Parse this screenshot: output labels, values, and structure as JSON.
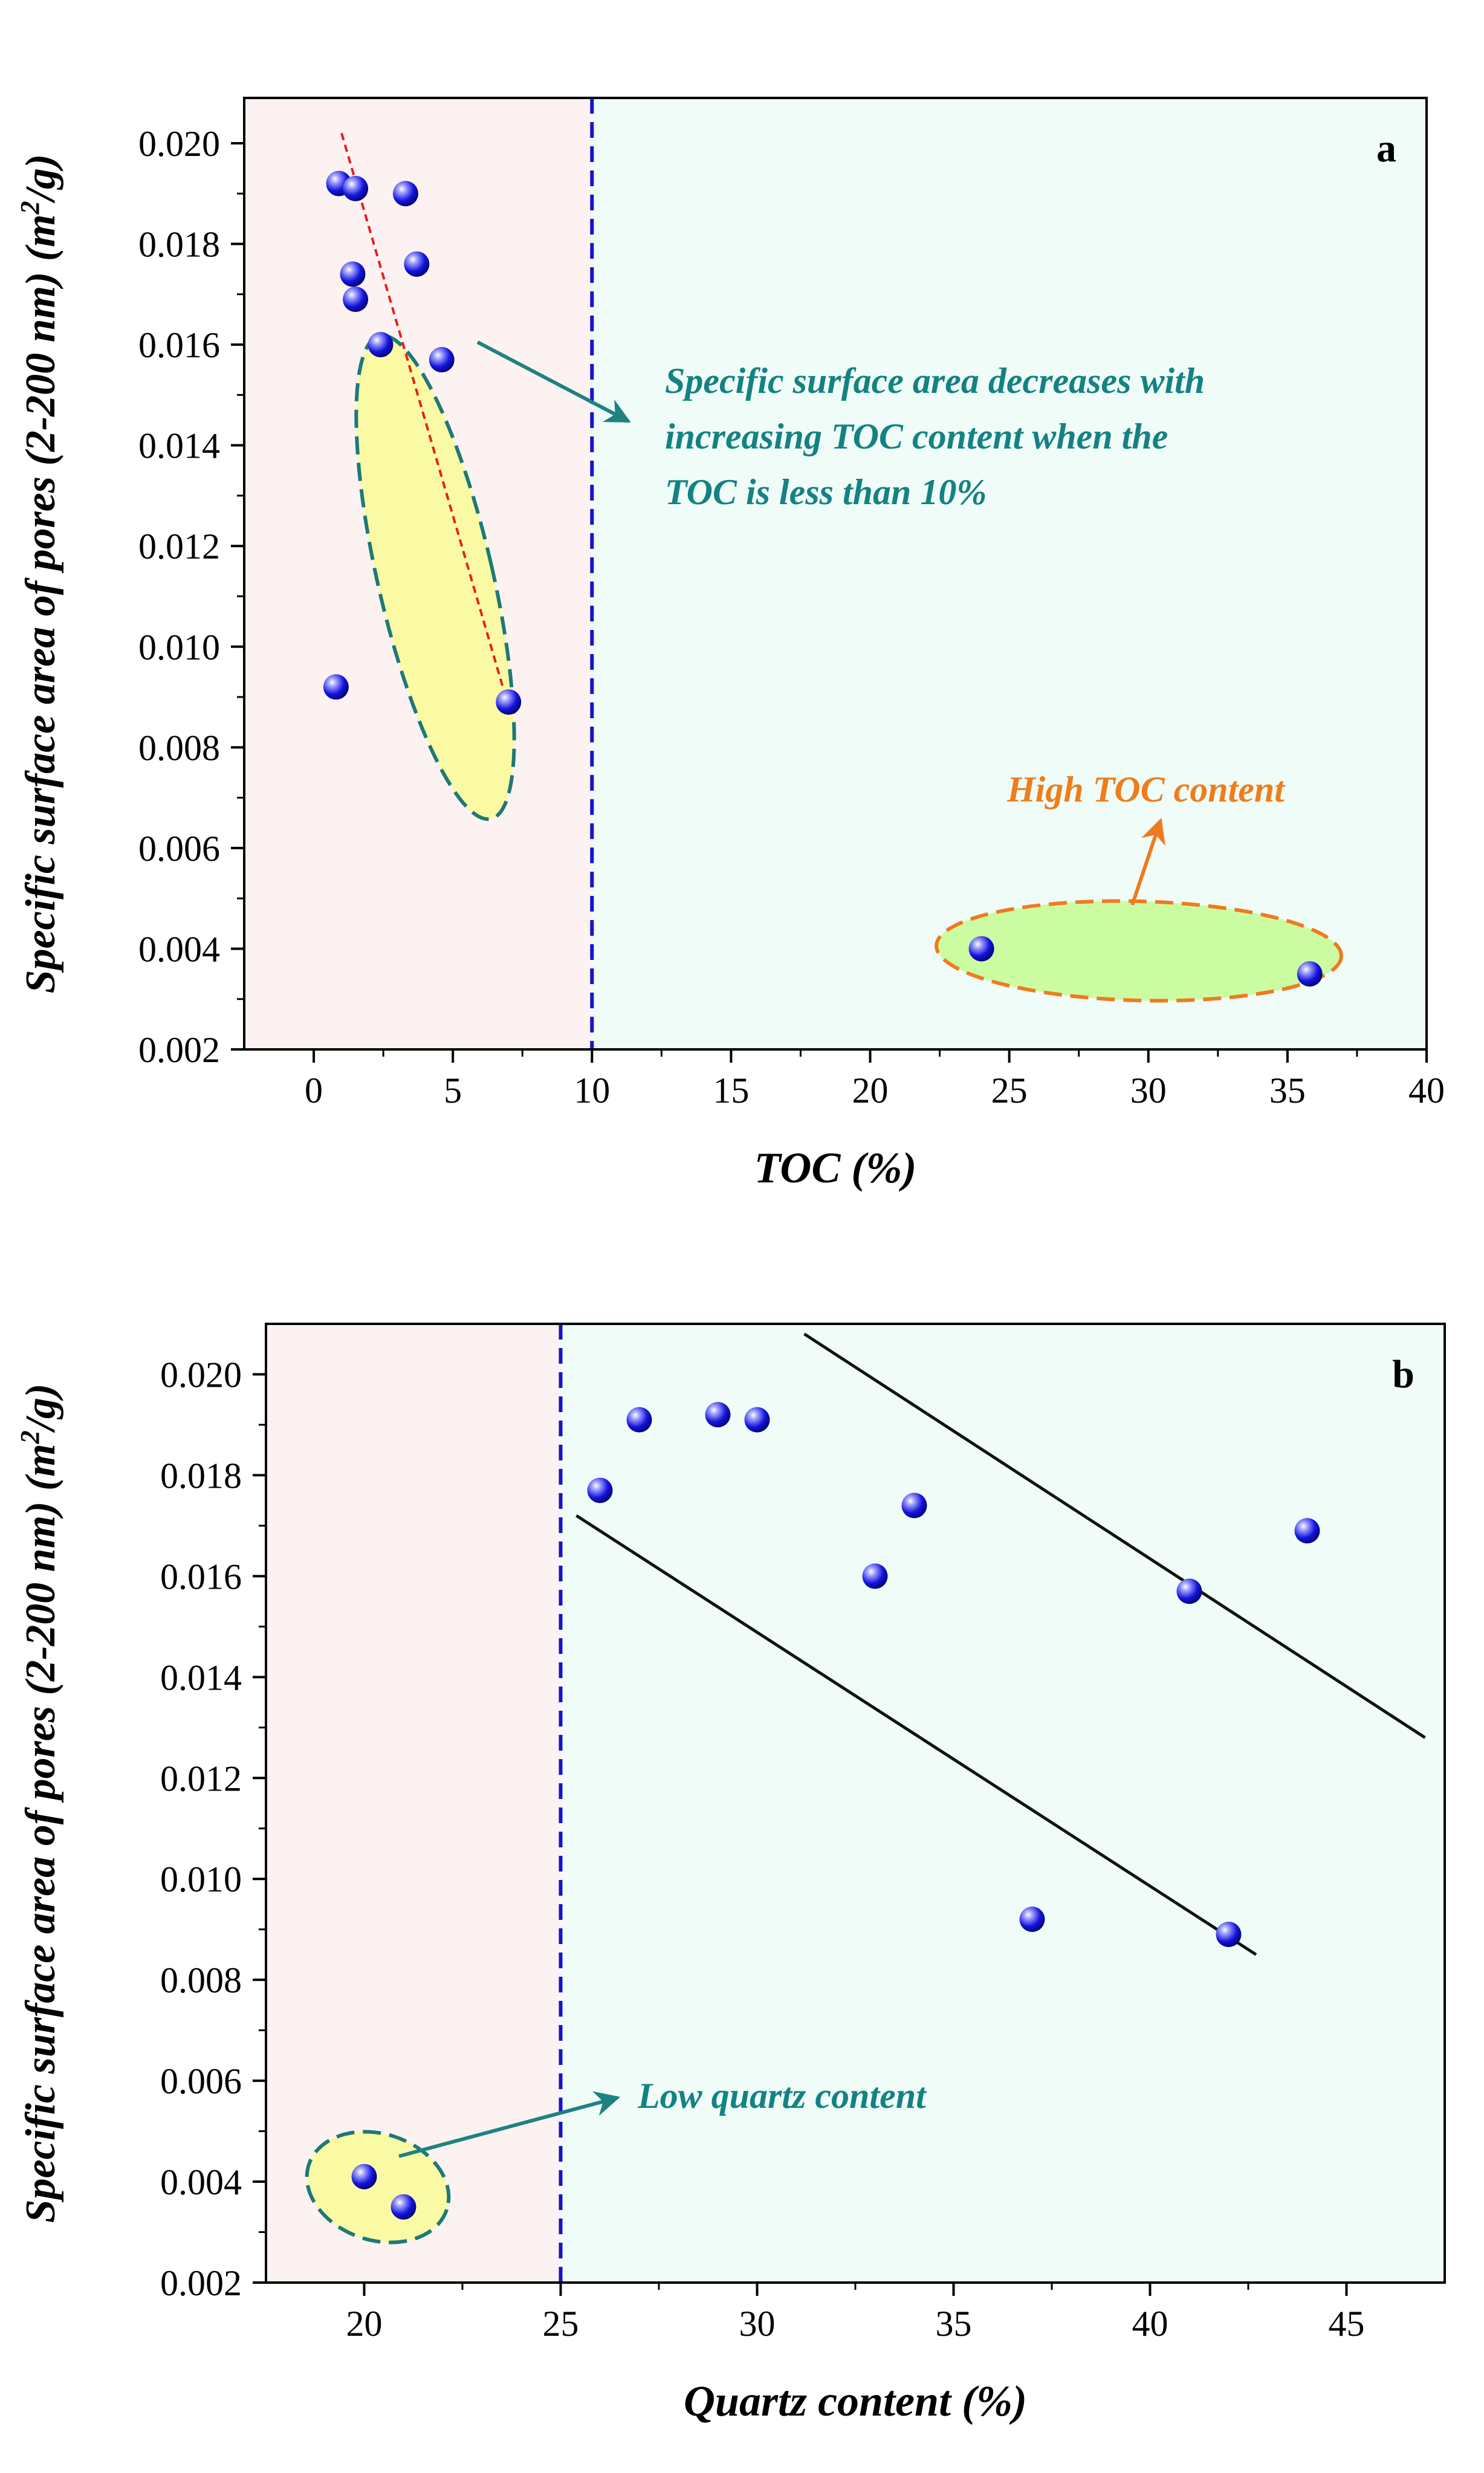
{
  "chart_data": [
    {
      "type": "scatter",
      "panel_label": "a",
      "xlabel": "TOC (%)",
      "ylabel_main": "Specific surface area of pores (2-200 nm) (m",
      "ylabel_sup": "2",
      "ylabel_end": "/g)",
      "xlim": [
        -2.5,
        40
      ],
      "ylim": [
        0.002,
        0.0209
      ],
      "xticks": [
        0,
        5,
        10,
        15,
        20,
        25,
        30,
        35,
        40
      ],
      "xtick_labels": [
        "0",
        "5",
        "10",
        "15",
        "20",
        "25",
        "30",
        "35",
        "40"
      ],
      "yticks": [
        0.002,
        0.004,
        0.006,
        0.008,
        0.01,
        0.012,
        0.014,
        0.016,
        0.018,
        0.02
      ],
      "ytick_labels": [
        "0.002",
        "0.004",
        "0.006",
        "0.008",
        "0.010",
        "0.012",
        "0.014",
        "0.016",
        "0.018",
        "0.020"
      ],
      "divider_x": 10,
      "points": [
        {
          "x": 0.9,
          "y": 0.0192
        },
        {
          "x": 1.5,
          "y": 0.0191
        },
        {
          "x": 3.3,
          "y": 0.019
        },
        {
          "x": 3.7,
          "y": 0.0176
        },
        {
          "x": 1.4,
          "y": 0.0174
        },
        {
          "x": 1.5,
          "y": 0.0169
        },
        {
          "x": 2.4,
          "y": 0.016
        },
        {
          "x": 4.6,
          "y": 0.0157
        },
        {
          "x": 0.8,
          "y": 0.0092
        },
        {
          "x": 7.0,
          "y": 0.0089
        },
        {
          "x": 24.0,
          "y": 0.004
        },
        {
          "x": 35.8,
          "y": 0.0035
        }
      ],
      "trend_line": [
        {
          "x": 1.0,
          "y": 0.0202
        },
        {
          "x": 6.9,
          "y": 0.009
        }
      ],
      "annotations": [
        {
          "text_lines": [
            "Specific surface area decreases with",
            "increasing TOC content when the",
            "TOC is less than 10%"
          ]
        },
        {
          "text_lines": [
            "High TOC content"
          ]
        }
      ],
      "colors": {
        "left_region": "#fcf2f1",
        "right_region": "#effcf8",
        "highlight_low": "#fafaa4",
        "highlight_high": "#cbfca2",
        "ellipse_border_teal": "#1e7878",
        "ellipse_border_orange": "#f07a1e",
        "arrow_teal": "#1e8282",
        "arrow_orange": "#f07a1e",
        "annotation_teal": "#148282",
        "annotation_orange": "#ef7d1a",
        "divider": "#1414cd",
        "trend": "#e81e1e",
        "marker": "#1212d8"
      }
    },
    {
      "type": "scatter",
      "panel_label": "b",
      "xlabel": "Quartz content (%)",
      "ylabel_main": "Specific surface area of pores (2-200 nm) (m",
      "ylabel_sup": "2",
      "ylabel_end": "/g)",
      "xlim": [
        17.5,
        47.5
      ],
      "ylim": [
        0.002,
        0.021
      ],
      "xticks": [
        20,
        25,
        30,
        35,
        40,
        45
      ],
      "xtick_labels": [
        "20",
        "25",
        "30",
        "35",
        "40",
        "45"
      ],
      "yticks": [
        0.002,
        0.004,
        0.006,
        0.008,
        0.01,
        0.012,
        0.014,
        0.016,
        0.018,
        0.02
      ],
      "ytick_labels": [
        "0.002",
        "0.004",
        "0.006",
        "0.008",
        "0.010",
        "0.012",
        "0.014",
        "0.016",
        "0.018",
        "0.020"
      ],
      "divider_x": 25,
      "points": [
        {
          "x": 20.0,
          "y": 0.0041
        },
        {
          "x": 21.0,
          "y": 0.0035
        },
        {
          "x": 26.0,
          "y": 0.0177
        },
        {
          "x": 27.0,
          "y": 0.0191
        },
        {
          "x": 29.0,
          "y": 0.0192
        },
        {
          "x": 30.0,
          "y": 0.0191
        },
        {
          "x": 33.0,
          "y": 0.016
        },
        {
          "x": 34.0,
          "y": 0.0174
        },
        {
          "x": 37.0,
          "y": 0.0092
        },
        {
          "x": 41.0,
          "y": 0.0157
        },
        {
          "x": 42.0,
          "y": 0.0089
        },
        {
          "x": 44.0,
          "y": 0.0169
        }
      ],
      "boundary_lines": [
        [
          {
            "x": 31.2,
            "y": 0.0208
          },
          {
            "x": 47.0,
            "y": 0.0128
          }
        ],
        [
          {
            "x": 25.4,
            "y": 0.0172
          },
          {
            "x": 42.7,
            "y": 0.0085
          }
        ]
      ],
      "annotations": [
        {
          "text_lines": [
            "Low quartz content"
          ]
        }
      ],
      "colors": {
        "left_region": "#fcf2f1",
        "right_region": "#effcf8",
        "highlight_low": "#fafaa4",
        "ellipse_border_teal": "#1e7878",
        "arrow_teal": "#1e8282",
        "annotation_teal": "#148282",
        "divider": "#1414cd",
        "boundary": "#111111",
        "marker": "#1212d8"
      }
    }
  ]
}
